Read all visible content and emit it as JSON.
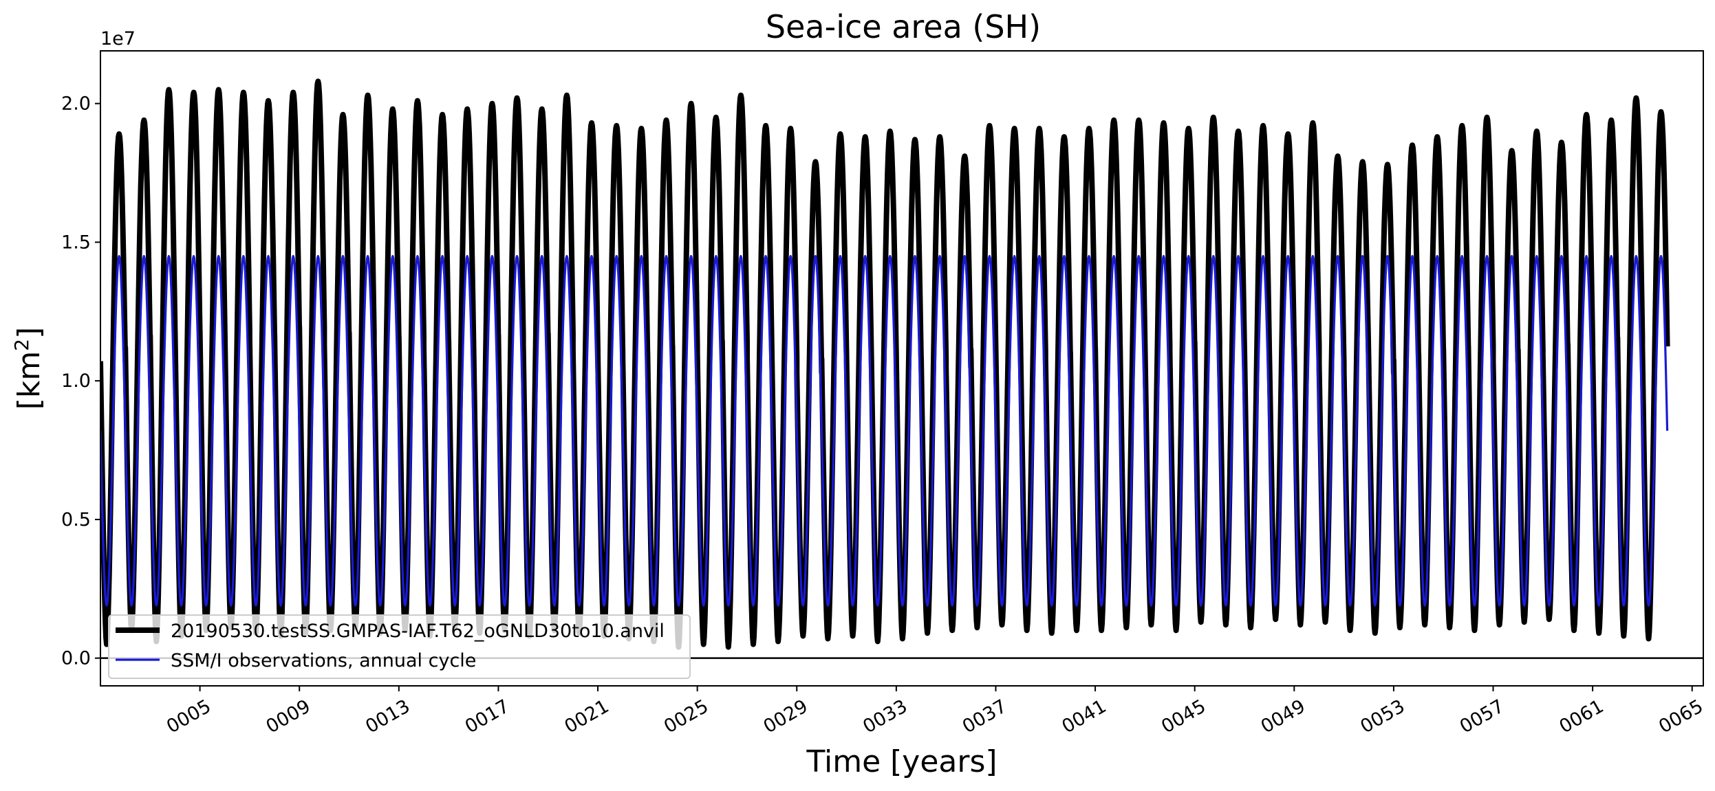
{
  "chart_data": {
    "type": "line",
    "title": "Sea-ice area (SH)",
    "xlabel": "Time [years]",
    "ylabel_base": "[km",
    "ylabel_sup": "2",
    "ylabel_end": "]",
    "y_offset_text": "1e7",
    "xlim": [
      1.0,
      65.45
    ],
    "ylim": [
      -0.1,
      2.19
    ],
    "y_scale_note": "values in units of 1e7 km^2",
    "x_ticks": [
      5,
      9,
      13,
      17,
      21,
      25,
      29,
      33,
      37,
      41,
      45,
      49,
      53,
      57,
      61,
      65
    ],
    "x_tick_labels": [
      "0005",
      "0009",
      "0013",
      "0017",
      "0021",
      "0025",
      "0029",
      "0033",
      "0037",
      "0041",
      "0045",
      "0049",
      "0053",
      "0057",
      "0061",
      "0065"
    ],
    "y_ticks": [
      0.0,
      0.5,
      1.0,
      1.5,
      2.0
    ],
    "y_tick_labels": [
      "0.0",
      "0.5",
      "1.0",
      "1.5",
      "2.0"
    ],
    "zero_line": 0.0,
    "legend_position": "lower left",
    "series": [
      {
        "name": "20190530.testSS.GMPAS-IAF.T62_oGNLD30to10.anvil",
        "color": "#000000",
        "style": "thick",
        "annual_max": [
          1.89,
          1.94,
          2.05,
          2.04,
          2.05,
          2.04,
          2.01,
          2.04,
          2.08,
          1.96,
          2.03,
          1.98,
          2.01,
          1.96,
          1.98,
          2.0,
          2.02,
          1.98,
          2.03,
          1.93,
          1.92,
          1.91,
          1.94,
          2.0,
          1.95,
          2.03,
          1.92,
          1.91,
          1.79,
          1.89,
          1.88,
          1.9,
          1.87,
          1.88,
          1.81,
          1.92,
          1.91,
          1.91,
          1.88,
          1.91,
          1.94,
          1.94,
          1.93,
          1.91,
          1.95,
          1.9,
          1.92,
          1.89,
          1.93,
          1.81,
          1.79,
          1.78,
          1.85,
          1.88,
          1.92,
          1.95,
          1.83,
          1.9,
          1.86,
          1.96,
          1.94,
          2.02,
          1.97
        ],
        "annual_min": [
          0.05,
          0.1,
          0.06,
          0.08,
          0.1,
          0.11,
          0.09,
          0.08,
          0.09,
          0.1,
          0.11,
          0.09,
          0.1,
          0.08,
          0.11,
          0.09,
          0.1,
          0.08,
          0.1,
          0.09,
          0.08,
          0.07,
          0.06,
          0.04,
          0.05,
          0.04,
          0.05,
          0.06,
          0.08,
          0.07,
          0.08,
          0.06,
          0.07,
          0.09,
          0.1,
          0.11,
          0.12,
          0.1,
          0.09,
          0.1,
          0.1,
          0.11,
          0.12,
          0.1,
          0.13,
          0.12,
          0.11,
          0.14,
          0.12,
          0.13,
          0.1,
          0.09,
          0.11,
          0.12,
          0.11,
          0.1,
          0.12,
          0.13,
          0.14,
          0.1,
          0.09,
          0.08,
          0.07
        ]
      },
      {
        "name": "SSM/I observations, annual cycle",
        "color": "#1a1ad6",
        "style": "thin",
        "annual_max": 1.45,
        "annual_min": 0.19
      }
    ]
  }
}
